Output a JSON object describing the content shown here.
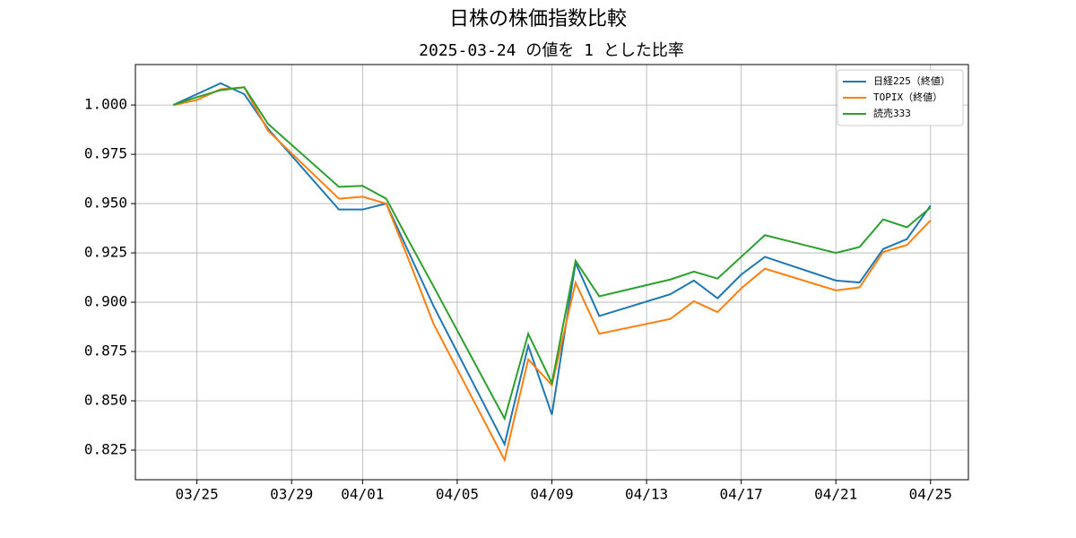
{
  "chart_data": {
    "type": "line",
    "title": "日株の株価指数比較",
    "subtitle": "2025-03-24 の値を 1 とした比率",
    "x": [
      "03/24",
      "03/25",
      "03/26",
      "03/27",
      "03/28",
      "03/31",
      "04/01",
      "04/02",
      "04/03",
      "04/04",
      "04/07",
      "04/08",
      "04/09",
      "04/10",
      "04/11",
      "04/14",
      "04/15",
      "04/16",
      "04/17",
      "04/18",
      "04/21",
      "04/22",
      "04/23",
      "04/24",
      "04/25"
    ],
    "series": [
      {
        "name": "日経225（終値）",
        "color": "#1f77b4",
        "values": [
          1.0,
          1.0055,
          1.011,
          1.0055,
          0.988,
          0.947,
          0.947,
          0.95,
          0.924,
          0.898,
          0.828,
          0.878,
          0.843,
          0.92,
          0.893,
          0.904,
          0.911,
          0.902,
          0.914,
          0.923,
          0.911,
          0.91,
          0.927,
          0.932,
          0.949
        ]
      },
      {
        "name": "TOPIX（終値）",
        "color": "#ff7f0e",
        "values": [
          1.0,
          1.0025,
          1.008,
          1.009,
          0.987,
          0.9525,
          0.9535,
          0.95,
          0.92,
          0.889,
          0.82,
          0.871,
          0.858,
          0.91,
          0.884,
          0.8915,
          0.9005,
          0.895,
          0.907,
          0.917,
          0.906,
          0.9075,
          0.9255,
          0.929,
          0.9415
        ]
      },
      {
        "name": "読売333",
        "color": "#2ca02c",
        "values": [
          1.0,
          1.004,
          1.0075,
          1.009,
          0.9905,
          0.9585,
          0.959,
          0.9525,
          0.93,
          0.908,
          0.841,
          0.884,
          0.859,
          0.921,
          0.903,
          0.9115,
          0.9155,
          0.912,
          0.923,
          0.934,
          0.925,
          0.928,
          0.942,
          0.938,
          0.948
        ]
      }
    ],
    "xticks": [
      "03/25",
      "03/29",
      "04/01",
      "04/05",
      "04/09",
      "04/13",
      "04/17",
      "04/21",
      "04/25"
    ],
    "ylim": [
      0.81,
      1.0205
    ],
    "yticks": [
      {
        "value": 0.825,
        "label": "0.825"
      },
      {
        "value": 0.85,
        "label": "0.850"
      },
      {
        "value": 0.875,
        "label": "0.875"
      },
      {
        "value": 0.9,
        "label": "0.900"
      },
      {
        "value": 0.925,
        "label": "0.925"
      },
      {
        "value": 0.95,
        "label": "0.950"
      },
      {
        "value": 0.975,
        "label": "0.975"
      },
      {
        "value": 1.0,
        "label": "1.000"
      }
    ],
    "grid": true,
    "legend": "upper right"
  }
}
